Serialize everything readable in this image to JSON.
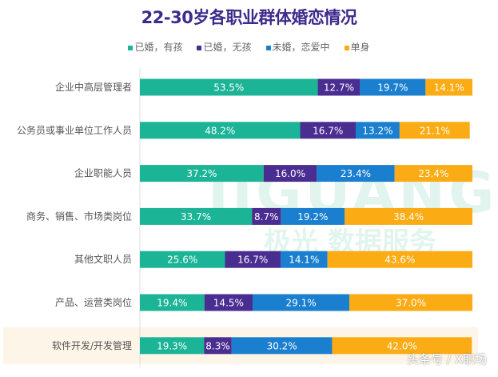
{
  "chart_data": {
    "type": "bar",
    "orientation": "horizontal",
    "stacked": true,
    "title": "22-30岁各职业群体婚恋情况",
    "xlabel": "",
    "ylabel": "",
    "xlim": [
      0,
      100
    ],
    "legend_position": "top",
    "categories": [
      "企业中高层管理者",
      "公务员或事业单位工作人员",
      "企业职能人员",
      "商务、销售、市场类岗位",
      "其他文职人员",
      "产品、运营类岗位",
      "软件开发/开发管理"
    ],
    "highlighted_category": "软件开发/开发管理",
    "series": [
      {
        "name": "已婚，有孩",
        "color": "#1cb496",
        "values": [
          53.5,
          48.2,
          37.2,
          33.7,
          25.6,
          19.4,
          19.3
        ],
        "labels": [
          "53.5%",
          "48.2%",
          "37.2%",
          "33.7%",
          "25.6%",
          "19.4%",
          "19.3%"
        ]
      },
      {
        "name": "已婚，无孩",
        "color": "#4a2d90",
        "values": [
          12.7,
          16.7,
          16.0,
          8.7,
          16.7,
          14.5,
          8.3
        ],
        "labels": [
          "12.7%",
          "16.7%",
          "16.0%",
          "8.7%",
          "16.7%",
          "14.5%",
          "8.3%"
        ]
      },
      {
        "name": "未婚，恋爱中",
        "color": "#1b7fcf",
        "values": [
          19.7,
          13.2,
          23.4,
          19.2,
          14.1,
          29.1,
          30.2
        ],
        "labels": [
          "19.7%",
          "13.2%",
          "23.4%",
          "19.2%",
          "14.1%",
          "29.1%",
          "30.2%"
        ]
      },
      {
        "name": "单身",
        "color": "#fbab14",
        "values": [
          14.1,
          21.1,
          23.4,
          38.4,
          43.6,
          37.0,
          42.0
        ],
        "labels": [
          "14.1%",
          "21.1%",
          "23.4%",
          "38.4%",
          "43.6%",
          "37.0%",
          "42.0%"
        ]
      }
    ]
  },
  "watermarks": {
    "brand": "极光 数据服务",
    "logo_text": "JIGUANG",
    "source": "头条号 / X职场"
  }
}
